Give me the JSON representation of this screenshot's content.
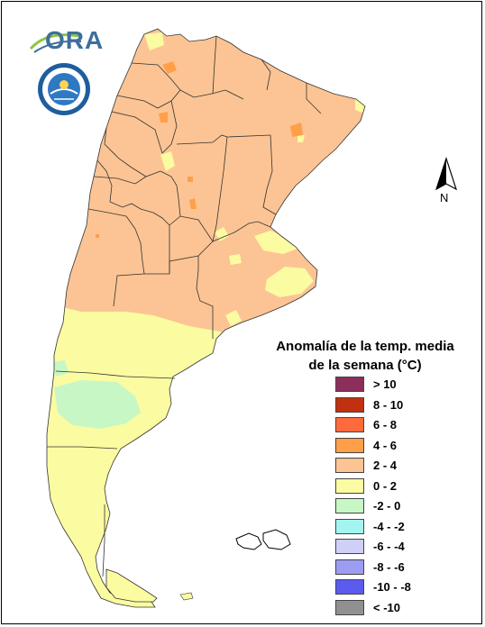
{
  "logos": {
    "ora_text": "ORA"
  },
  "north_arrow": {
    "label": "N"
  },
  "legend": {
    "title_line1": "Anomalía de la temp. media",
    "title_line2": "de la semana (°C)",
    "items": [
      {
        "label": "> 10",
        "color": "#8b2f5a"
      },
      {
        "label": "8 - 10",
        "color": "#c1300f"
      },
      {
        "label": "6 - 8",
        "color": "#ff6a3d"
      },
      {
        "label": "4 - 6",
        "color": "#ff9f4a"
      },
      {
        "label": "2 - 4",
        "color": "#fcc494"
      },
      {
        "label": "0 - 2",
        "color": "#fbfba1"
      },
      {
        "label": "-2 - 0",
        "color": "#c8f7c6"
      },
      {
        "label": "-4 - -2",
        "color": "#a4f5f2"
      },
      {
        "label": "-6 - -4",
        "color": "#cfcff7"
      },
      {
        "label": "-8 - -6",
        "color": "#9c9cf3"
      },
      {
        "label": "-10 - -8",
        "color": "#5b5bf0"
      },
      {
        "label": "< -10",
        "color": "#909090"
      }
    ]
  },
  "map_colors": {
    "warm": "#fcc494",
    "mild": "#fbfba1",
    "cool": "#c8f7c6",
    "hot": "#ff9f4a",
    "border": "#333333"
  }
}
